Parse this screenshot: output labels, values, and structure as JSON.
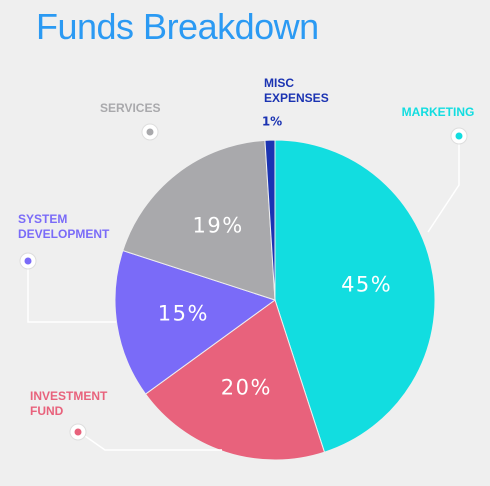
{
  "chart_data": {
    "type": "pie",
    "title": "Funds Breakdown",
    "categories": [
      "MARKETING",
      "INVESTMENT FUND",
      "SYSTEM DEVELOPMENT",
      "SERVICES",
      "MISC EXPENSES"
    ],
    "values": [
      45,
      20,
      15,
      19,
      1
    ],
    "value_labels": [
      "45%",
      "20%",
      "15%",
      "19%",
      "1%"
    ],
    "colors": [
      "#12dde0",
      "#e8627c",
      "#7a6bf8",
      "#a9a9ac",
      "#1b33b2"
    ]
  }
}
